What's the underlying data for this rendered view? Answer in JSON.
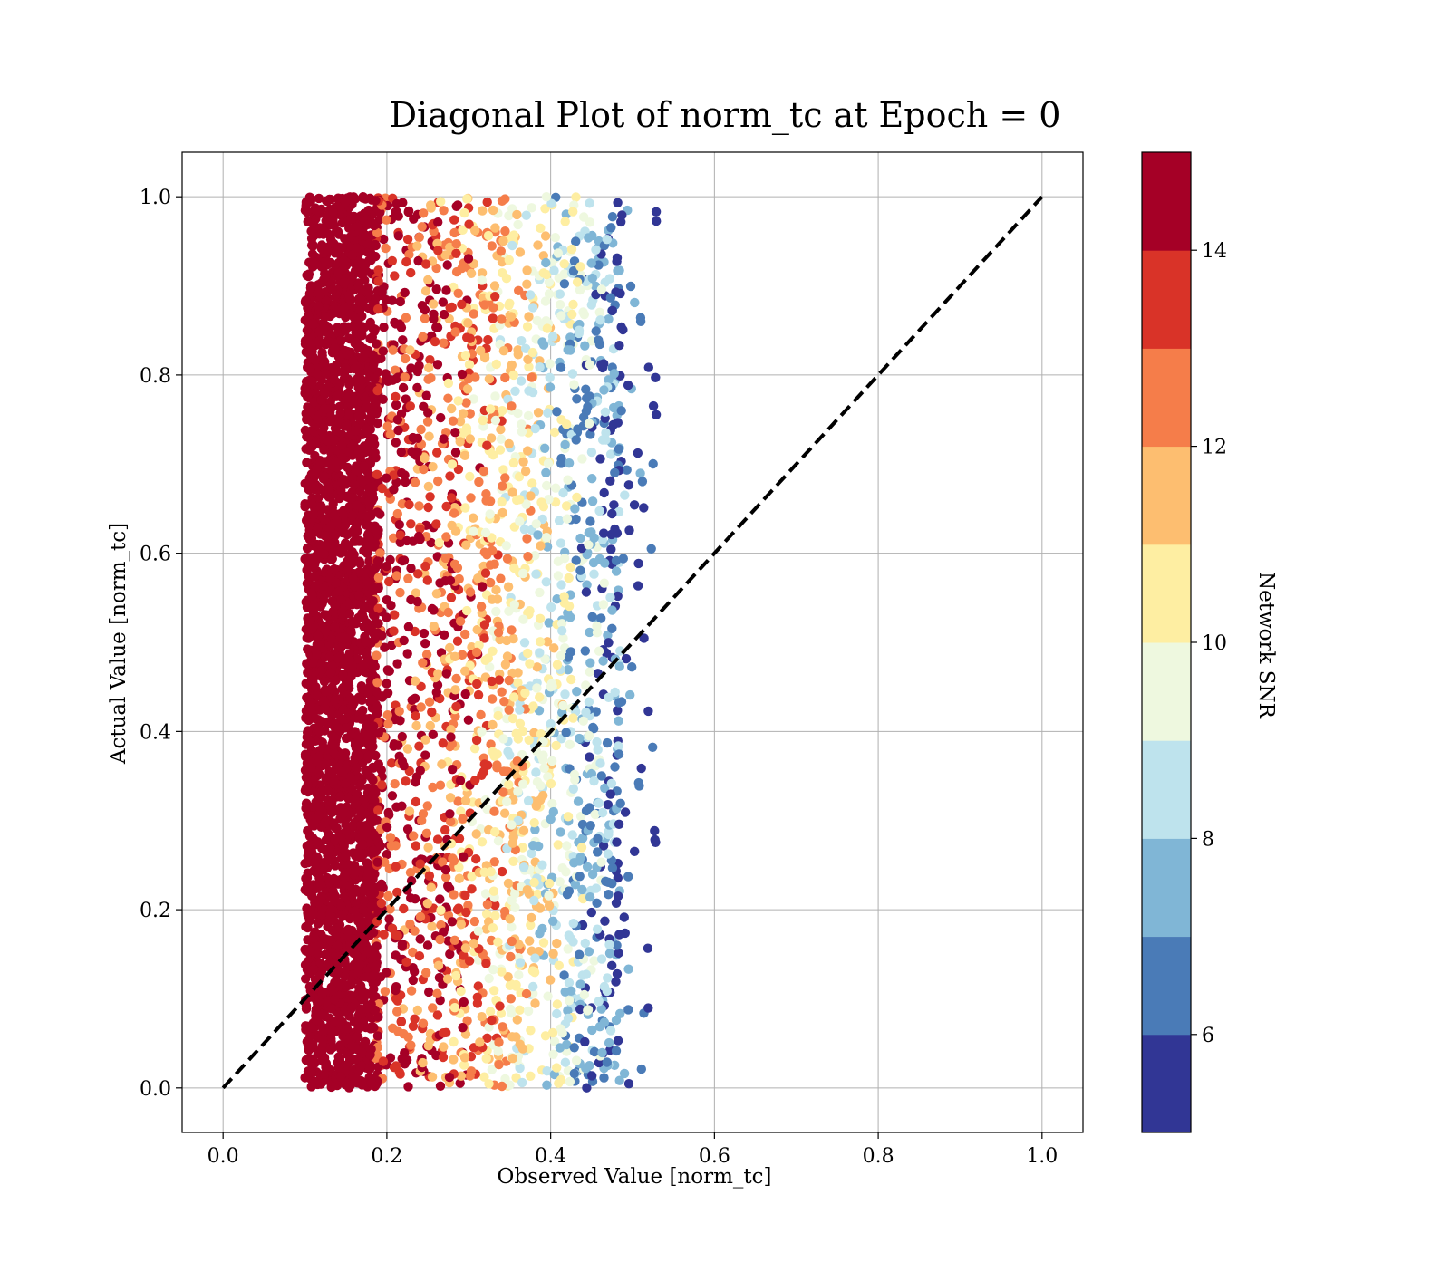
{
  "chart_data": {
    "type": "scatter",
    "title": "Diagonal Plot of norm_tc at Epoch = 0",
    "xlabel": "Observed Value [norm_tc]",
    "ylabel": "Actual Value [norm_tc]",
    "xlim": [
      -0.05,
      1.05
    ],
    "ylim": [
      -0.05,
      1.05
    ],
    "xticks": [
      "0.0",
      "0.2",
      "0.4",
      "0.6",
      "0.8",
      "1.0"
    ],
    "yticks": [
      "0.0",
      "0.2",
      "0.4",
      "0.6",
      "0.8",
      "1.0"
    ],
    "grid": true,
    "reference_line": {
      "x": [
        0,
        1
      ],
      "y": [
        0,
        1
      ],
      "style": "dashed",
      "color": "#000000"
    },
    "observed_range": [
      0.1,
      0.5
    ],
    "actual_range": [
      0.0,
      1.0
    ],
    "colorbar": {
      "label": "Network SNR",
      "range": [
        5,
        15
      ],
      "ticks": [
        "6",
        "8",
        "10",
        "12",
        "14"
      ],
      "bins": [
        {
          "from": 5,
          "to": 6,
          "color": "#313695"
        },
        {
          "from": 6,
          "to": 7,
          "color": "#4a7bb7"
        },
        {
          "from": 7,
          "to": 8,
          "color": "#80b6d6"
        },
        {
          "from": 8,
          "to": 9,
          "color": "#bee3ed"
        },
        {
          "from": 9,
          "to": 10,
          "color": "#eef8df"
        },
        {
          "from": 10,
          "to": 11,
          "color": "#feeea2"
        },
        {
          "from": 11,
          "to": 12,
          "color": "#fdbe70"
        },
        {
          "from": 12,
          "to": 13,
          "color": "#f57d4a"
        },
        {
          "from": 13,
          "to": 14,
          "color": "#d93328"
        },
        {
          "from": 14,
          "to": 15,
          "color": "#a50026"
        }
      ]
    }
  }
}
